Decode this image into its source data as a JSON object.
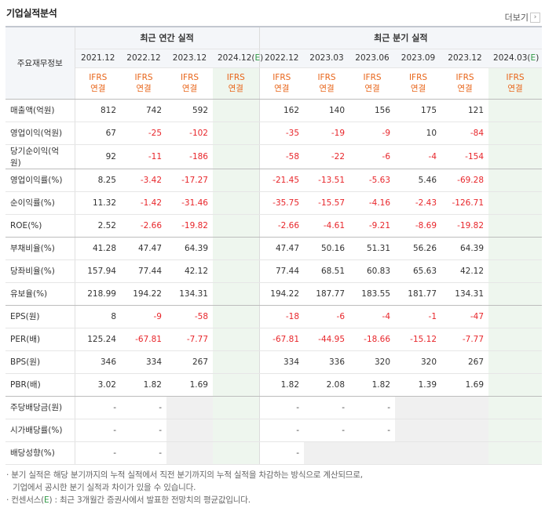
{
  "title": "기업실적분석",
  "more_label": "더보기",
  "more_icon": "chevron-right-icon",
  "table": {
    "corner_label": "주요재무정보",
    "annual_group": "최근 연간 실적",
    "quarter_group": "최근 분기 실적",
    "periods": [
      "2021.12",
      "2022.12",
      "2023.12",
      "2024.12(E)",
      "2022.12",
      "2023.03",
      "2023.06",
      "2023.09",
      "2023.12",
      "2024.03(E)"
    ],
    "standard_top": "IFRS",
    "standard_bottom": "연결",
    "rows": [
      {
        "label": "매출액(억원)",
        "values": [
          "812",
          "742",
          "592",
          "",
          "162",
          "140",
          "156",
          "175",
          "121",
          ""
        ]
      },
      {
        "label": "영업이익(억원)",
        "values": [
          "67",
          "-25",
          "-102",
          "",
          "-35",
          "-19",
          "-9",
          "10",
          "-84",
          ""
        ]
      },
      {
        "label": "당기순이익(억원)",
        "values": [
          "92",
          "-11",
          "-186",
          "",
          "-58",
          "-22",
          "-6",
          "-4",
          "-154",
          ""
        ]
      },
      {
        "label": "영업이익률(%)",
        "values": [
          "8.25",
          "-3.42",
          "-17.27",
          "",
          "-21.45",
          "-13.51",
          "-5.63",
          "5.46",
          "-69.28",
          ""
        ]
      },
      {
        "label": "순이익률(%)",
        "values": [
          "11.32",
          "-1.42",
          "-31.46",
          "",
          "-35.75",
          "-15.57",
          "-4.16",
          "-2.43",
          "-126.71",
          ""
        ]
      },
      {
        "label": "ROE(%)",
        "values": [
          "2.52",
          "-2.66",
          "-19.82",
          "",
          "-2.66",
          "-4.61",
          "-9.21",
          "-8.69",
          "-19.82",
          ""
        ]
      },
      {
        "label": "부채비율(%)",
        "values": [
          "41.28",
          "47.47",
          "64.39",
          "",
          "47.47",
          "50.16",
          "51.31",
          "56.26",
          "64.39",
          ""
        ]
      },
      {
        "label": "당좌비율(%)",
        "values": [
          "157.94",
          "77.44",
          "42.12",
          "",
          "77.44",
          "68.51",
          "60.83",
          "65.63",
          "42.12",
          ""
        ]
      },
      {
        "label": "유보율(%)",
        "values": [
          "218.99",
          "194.22",
          "134.31",
          "",
          "194.22",
          "187.77",
          "183.55",
          "181.77",
          "134.31",
          ""
        ]
      },
      {
        "label": "EPS(원)",
        "values": [
          "8",
          "-9",
          "-58",
          "",
          "-18",
          "-6",
          "-4",
          "-1",
          "-47",
          ""
        ]
      },
      {
        "label": "PER(배)",
        "values": [
          "125.24",
          "-67.81",
          "-7.77",
          "",
          "-67.81",
          "-44.95",
          "-18.66",
          "-15.12",
          "-7.77",
          ""
        ]
      },
      {
        "label": "BPS(원)",
        "values": [
          "346",
          "334",
          "267",
          "",
          "334",
          "336",
          "320",
          "320",
          "267",
          ""
        ]
      },
      {
        "label": "PBR(배)",
        "values": [
          "3.02",
          "1.82",
          "1.69",
          "",
          "1.82",
          "2.08",
          "1.82",
          "1.39",
          "1.69",
          ""
        ]
      },
      {
        "label": "주당배당금(원)",
        "values": [
          "-",
          "-",
          "",
          "",
          "-",
          "-",
          "-",
          "",
          "",
          ""
        ]
      },
      {
        "label": "시가배당률(%)",
        "values": [
          "-",
          "-",
          "",
          "",
          "-",
          "-",
          "-",
          "",
          "",
          ""
        ]
      },
      {
        "label": "배당성향(%)",
        "values": [
          "-",
          "-",
          "",
          "",
          "-",
          "",
          "",
          "",
          "",
          ""
        ]
      }
    ]
  },
  "notes": [
    "· 분기 실적은 해당 분기까지의 누적 실적에서 직전 분기까지의 누적 실적을 차감하는 방식으로 계산되므로,",
    "기업에서 공시한 분기 실적과 차이가 있을 수 있습니다.",
    "· 컨센서스(E) : 최근 3개월간 증권사에서 발표한 전망치의 평균값입니다."
  ],
  "colors": {
    "negative": "#e8262b",
    "ifrs": "#e8651a",
    "estimate_bg": "#eef6ee",
    "estimate_mark": "#2e9a44"
  }
}
